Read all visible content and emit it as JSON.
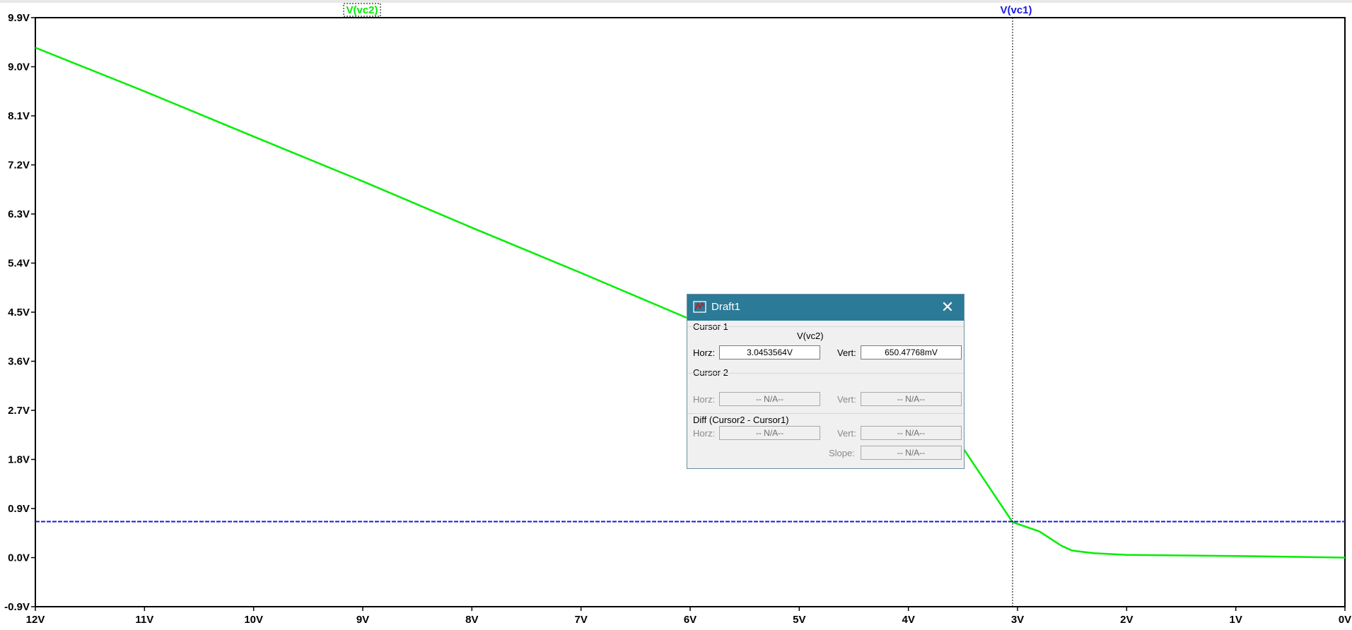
{
  "colors": {
    "vc2_trace": "#00ee00",
    "vc1_trace": "#1a1ae0",
    "vc1_label": "#1a1ae0",
    "dialog_titlebar": "#2b7a98"
  },
  "chart_data": {
    "type": "line",
    "title": "",
    "xlabel": "",
    "ylabel": "",
    "xlim": [
      12,
      0
    ],
    "ylim": [
      -0.9,
      9.9
    ],
    "x_ticks": [
      "12V",
      "11V",
      "10V",
      "9V",
      "8V",
      "7V",
      "6V",
      "5V",
      "4V",
      "3V",
      "2V",
      "1V",
      "0V"
    ],
    "y_ticks": [
      "9.9V",
      "9.0V",
      "8.1V",
      "7.2V",
      "6.3V",
      "5.4V",
      "4.5V",
      "3.6V",
      "2.7V",
      "1.8V",
      "0.9V",
      "0.0V",
      "-0.9V"
    ],
    "grid": false,
    "cursor_x": 3.0453564,
    "series": [
      {
        "name": "V(vc2)",
        "color": "#00ee00",
        "points": [
          [
            12,
            9.35
          ],
          [
            11,
            8.55
          ],
          [
            10,
            7.72
          ],
          [
            9,
            6.9
          ],
          [
            8,
            6.05
          ],
          [
            7,
            5.22
          ],
          [
            6,
            4.37
          ],
          [
            5,
            3.55
          ],
          [
            4,
            2.73
          ],
          [
            3.5,
            2.01
          ],
          [
            3.0453564,
            0.65
          ],
          [
            2.8,
            0.48
          ],
          [
            2.6,
            0.22
          ],
          [
            2.5,
            0.13
          ],
          [
            2.3,
            0.08
          ],
          [
            2,
            0.05
          ],
          [
            1,
            0.03
          ],
          [
            0,
            0.0
          ]
        ]
      },
      {
        "name": "V(vc1)",
        "color": "#1a1ae0",
        "points": [
          [
            12,
            0.66
          ],
          [
            0,
            0.66
          ]
        ]
      }
    ]
  },
  "dialog": {
    "title": "Draft1",
    "close_glyph": "✕",
    "cursor1": {
      "group_label": "Cursor 1",
      "trace_name": "V(vc2)",
      "horz_label": "Horz:",
      "horz_value": "3.0453564V",
      "vert_label": "Vert:",
      "vert_value": "650.47768mV"
    },
    "cursor2": {
      "group_label": "Cursor 2",
      "horz_label": "Horz:",
      "horz_value": "-- N/A--",
      "vert_label": "Vert:",
      "vert_value": "-- N/A--"
    },
    "diff": {
      "group_label": "Diff (Cursor2 - Cursor1)",
      "horz_label": "Horz:",
      "horz_value": "-- N/A--",
      "vert_label": "Vert:",
      "vert_value": "-- N/A--",
      "slope_label": "Slope:",
      "slope_value": "-- N/A--"
    }
  }
}
